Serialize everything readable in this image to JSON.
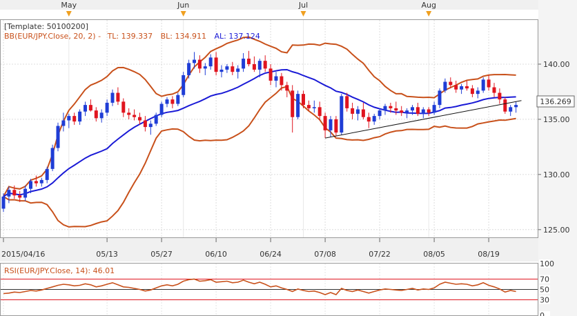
{
  "chart_data": [
    {
      "type": "candlestick",
      "template_label": "[Template: 50100200]",
      "indicator_label": "BB(EUR/JPY.Close, 20, 2) -",
      "tl_label": "TL: 139.337",
      "bl_label": "BL: 134.911",
      "al_label": "AL: 137.124",
      "last_price_label": "136.269",
      "last_price": 136.269,
      "ylim": [
        124.3,
        144.0
      ],
      "yticks": [
        125.0,
        130.0,
        135.0,
        140.0
      ],
      "ytick_labels": [
        "125.00",
        "130.00",
        "135.00",
        "140.00"
      ],
      "x_labels": [
        {
          "index": 0,
          "text": "2015/04/16"
        },
        {
          "index": 19,
          "text": "05/13"
        },
        {
          "index": 29,
          "text": "05/27"
        },
        {
          "index": 39,
          "text": "06/10"
        },
        {
          "index": 49,
          "text": "06/24"
        },
        {
          "index": 59,
          "text": "07/08"
        },
        {
          "index": 69,
          "text": "07/22"
        },
        {
          "index": 79,
          "text": "08/05"
        },
        {
          "index": 89,
          "text": "08/19"
        }
      ],
      "months": [
        {
          "index": 12,
          "text": "May"
        },
        {
          "index": 33,
          "text": "Jun"
        },
        {
          "index": 55,
          "text": "Jul"
        },
        {
          "index": 78,
          "text": "Aug"
        }
      ],
      "colors": {
        "up": "#1f3dd6",
        "down": "#e0141e",
        "bands": "#c8501a",
        "average": "#1a1ad6",
        "trendline": "#111111",
        "rsi": "#c8501a"
      },
      "ohlc": [
        [
          126.9,
          128.3,
          126.6,
          128.0
        ],
        [
          128.0,
          128.9,
          127.4,
          128.6
        ],
        [
          128.6,
          129.0,
          127.8,
          128.1
        ],
        [
          128.1,
          128.5,
          127.5,
          127.9
        ],
        [
          127.9,
          129.0,
          127.6,
          128.7
        ],
        [
          128.7,
          129.6,
          128.3,
          129.4
        ],
        [
          129.4,
          129.9,
          128.9,
          129.2
        ],
        [
          129.2,
          129.7,
          128.9,
          129.5
        ],
        [
          129.5,
          130.7,
          129.2,
          130.5
        ],
        [
          130.5,
          132.7,
          130.3,
          132.4
        ],
        [
          132.4,
          134.7,
          132.1,
          134.4
        ],
        [
          134.4,
          135.6,
          133.9,
          134.9
        ],
        [
          134.9,
          135.5,
          134.2,
          135.3
        ],
        [
          135.3,
          135.6,
          134.5,
          134.8
        ],
        [
          134.8,
          135.9,
          134.5,
          135.7
        ],
        [
          135.7,
          136.6,
          135.3,
          136.3
        ],
        [
          136.3,
          136.8,
          135.7,
          135.8
        ],
        [
          135.8,
          136.1,
          134.8,
          135.1
        ],
        [
          135.1,
          135.9,
          134.7,
          135.6
        ],
        [
          135.6,
          136.8,
          135.3,
          136.5
        ],
        [
          136.5,
          137.7,
          136.2,
          137.4
        ],
        [
          137.4,
          137.9,
          136.3,
          136.6
        ],
        [
          136.6,
          136.9,
          135.2,
          135.6
        ],
        [
          135.6,
          136.0,
          135.0,
          135.4
        ],
        [
          135.4,
          135.9,
          134.9,
          135.2
        ],
        [
          135.2,
          135.6,
          134.5,
          134.9
        ],
        [
          134.9,
          135.3,
          133.9,
          134.3
        ],
        [
          134.3,
          134.9,
          133.6,
          134.6
        ],
        [
          134.6,
          135.6,
          134.4,
          135.4
        ],
        [
          135.4,
          136.6,
          135.2,
          136.4
        ],
        [
          136.4,
          137.0,
          136.1,
          136.8
        ],
        [
          136.8,
          137.1,
          136.0,
          136.4
        ],
        [
          136.4,
          137.4,
          136.2,
          137.2
        ],
        [
          137.2,
          139.3,
          137.0,
          139.0
        ],
        [
          139.0,
          140.4,
          138.7,
          140.1
        ],
        [
          140.1,
          141.1,
          139.6,
          140.4
        ],
        [
          140.4,
          140.8,
          139.2,
          139.6
        ],
        [
          139.6,
          140.1,
          139.0,
          139.8
        ],
        [
          139.8,
          140.9,
          139.5,
          140.6
        ],
        [
          140.6,
          141.1,
          139.0,
          139.3
        ],
        [
          139.3,
          139.9,
          138.8,
          139.5
        ],
        [
          139.5,
          140.0,
          139.2,
          139.8
        ],
        [
          139.8,
          140.2,
          139.0,
          139.3
        ],
        [
          139.3,
          139.9,
          138.7,
          139.6
        ],
        [
          139.6,
          141.0,
          139.3,
          140.5
        ],
        [
          140.5,
          141.2,
          139.8,
          140.0
        ],
        [
          140.0,
          140.7,
          139.3,
          139.5
        ],
        [
          139.5,
          140.5,
          138.8,
          140.3
        ],
        [
          140.3,
          140.8,
          139.3,
          139.6
        ],
        [
          139.6,
          140.0,
          138.1,
          138.5
        ],
        [
          138.5,
          139.3,
          137.9,
          138.9
        ],
        [
          138.9,
          139.2,
          137.6,
          138.1
        ],
        [
          138.1,
          138.4,
          137.0,
          137.6
        ],
        [
          137.6,
          138.1,
          133.8,
          135.2
        ],
        [
          135.2,
          137.6,
          135.0,
          137.3
        ],
        [
          137.3,
          137.6,
          136.0,
          136.3
        ],
        [
          136.3,
          136.7,
          135.8,
          136.0
        ],
        [
          136.0,
          136.7,
          135.6,
          136.1
        ],
        [
          136.1,
          136.6,
          134.9,
          135.3
        ],
        [
          135.3,
          135.6,
          133.3,
          134.0
        ],
        [
          134.0,
          135.3,
          133.4,
          135.0
        ],
        [
          135.0,
          135.3,
          133.5,
          133.8
        ],
        [
          133.8,
          137.3,
          133.6,
          137.1
        ],
        [
          137.1,
          137.4,
          135.7,
          136.0
        ],
        [
          136.0,
          136.5,
          135.0,
          135.5
        ],
        [
          135.5,
          136.2,
          134.9,
          135.9
        ],
        [
          135.9,
          136.5,
          135.0,
          135.2
        ],
        [
          135.2,
          135.6,
          134.2,
          134.8
        ],
        [
          134.8,
          135.5,
          134.5,
          135.3
        ],
        [
          135.3,
          136.0,
          135.0,
          135.8
        ],
        [
          135.8,
          136.4,
          135.4,
          136.2
        ],
        [
          136.2,
          136.5,
          135.6,
          136.0
        ],
        [
          136.0,
          136.6,
          135.4,
          135.8
        ],
        [
          135.8,
          136.2,
          135.3,
          135.6
        ],
        [
          135.6,
          136.0,
          135.1,
          135.8
        ],
        [
          135.8,
          136.3,
          135.4,
          136.1
        ],
        [
          136.1,
          136.5,
          135.3,
          135.5
        ],
        [
          135.5,
          136.1,
          135.1,
          135.9
        ],
        [
          135.9,
          136.1,
          135.3,
          135.6
        ],
        [
          135.6,
          136.6,
          135.4,
          136.3
        ],
        [
          136.3,
          137.8,
          136.0,
          137.6
        ],
        [
          137.6,
          138.7,
          137.4,
          138.4
        ],
        [
          138.4,
          138.8,
          137.8,
          138.1
        ],
        [
          138.1,
          138.5,
          137.4,
          137.7
        ],
        [
          137.7,
          138.2,
          137.3,
          138.0
        ],
        [
          138.0,
          138.5,
          137.6,
          137.8
        ],
        [
          137.8,
          138.1,
          137.0,
          137.3
        ],
        [
          137.3,
          137.9,
          136.9,
          137.6
        ],
        [
          137.6,
          138.8,
          137.4,
          138.6
        ],
        [
          138.6,
          139.0,
          137.6,
          137.9
        ],
        [
          137.9,
          138.3,
          137.0,
          137.4
        ],
        [
          137.4,
          137.8,
          136.4,
          136.8
        ],
        [
          136.8,
          137.0,
          135.5,
          135.7
        ],
        [
          135.7,
          136.3,
          135.3,
          136.1
        ],
        [
          136.1,
          136.6,
          135.6,
          136.3
        ]
      ],
      "bands": {
        "upper_label": "TL",
        "middle_label": "AL",
        "lower_label": "BL",
        "upper_last": 139.337,
        "middle_last": 137.124,
        "lower_last": 134.911
      },
      "trendline": [
        [
          59,
          133.3
        ],
        [
          95,
          136.7
        ]
      ]
    },
    {
      "type": "line",
      "indicator_label": "RSI(EUR/JPY.Close, 14): 46.01",
      "ylim": [
        0,
        100
      ],
      "yticks": [
        0,
        30,
        50,
        70,
        100
      ],
      "ytick_labels": [
        "0",
        "30",
        "50",
        "70",
        "100"
      ],
      "ytick_colors": [
        "#111111",
        "#e0141e",
        "#111111",
        "#e0141e",
        "#111111"
      ],
      "last_value": 46.01,
      "values": [
        42,
        43,
        45,
        44,
        46,
        48,
        47,
        49,
        52,
        55,
        58,
        60,
        59,
        57,
        58,
        61,
        59,
        55,
        57,
        60,
        63,
        59,
        55,
        54,
        52,
        50,
        47,
        49,
        53,
        57,
        59,
        57,
        60,
        66,
        69,
        70,
        66,
        67,
        69,
        64,
        65,
        66,
        63,
        64,
        68,
        64,
        61,
        64,
        60,
        55,
        57,
        53,
        50,
        46,
        51,
        48,
        46,
        47,
        44,
        40,
        44,
        40,
        52,
        48,
        46,
        49,
        46,
        43,
        46,
        49,
        51,
        50,
        49,
        48,
        50,
        52,
        49,
        51,
        50,
        53,
        60,
        64,
        62,
        60,
        61,
        60,
        57,
        59,
        63,
        58,
        55,
        51,
        45,
        48,
        46
      ]
    }
  ]
}
